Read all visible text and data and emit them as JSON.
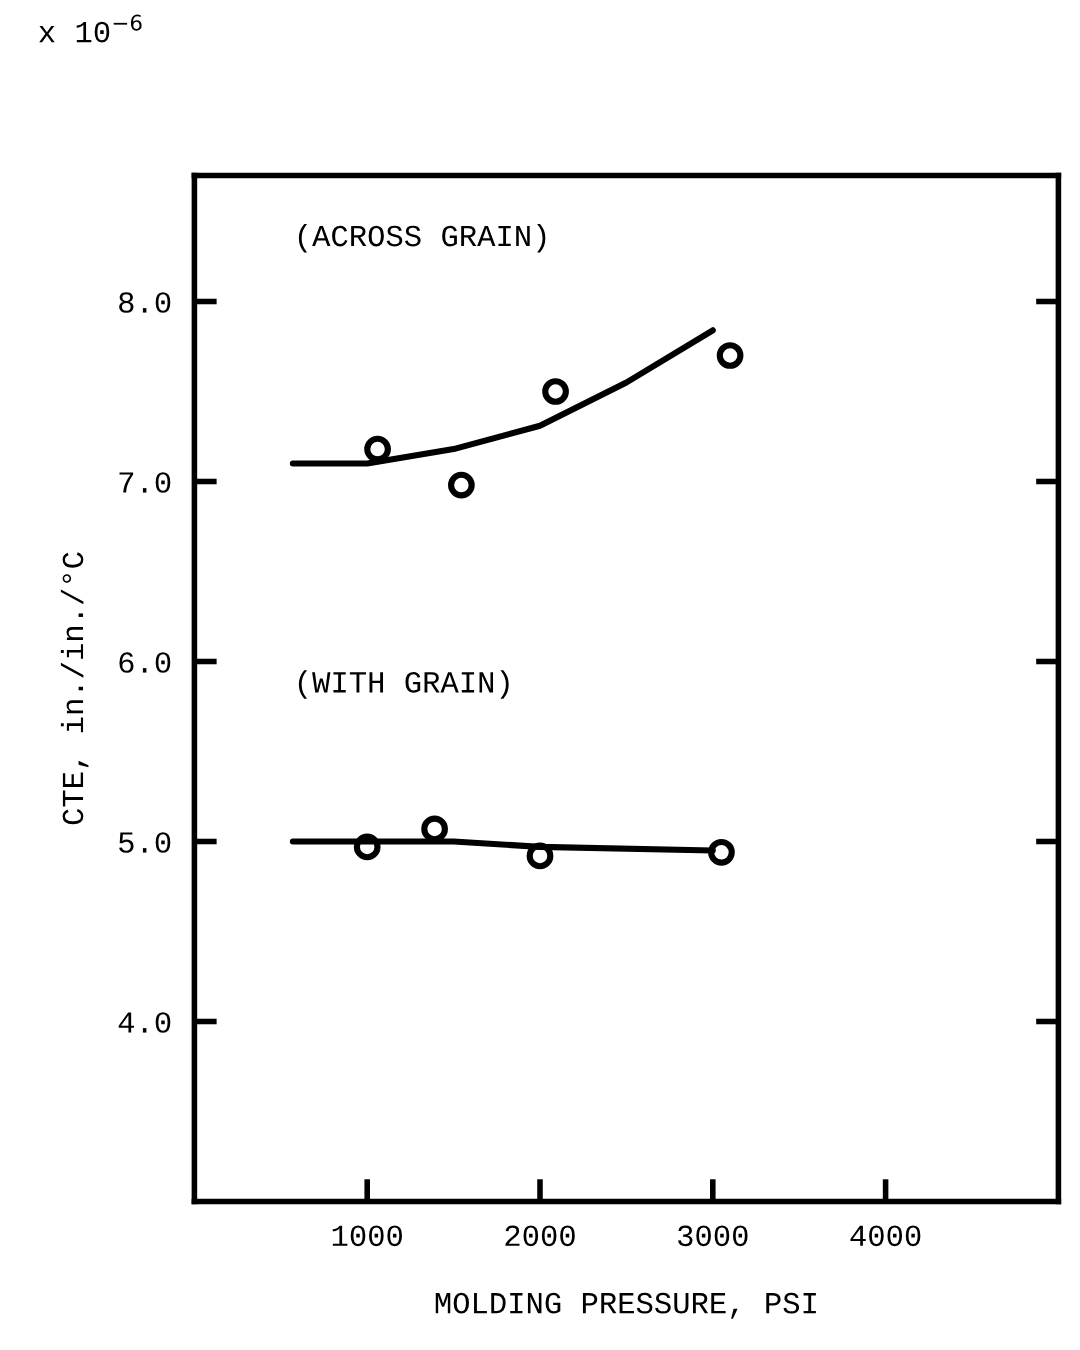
{
  "chart_data": {
    "type": "scatter",
    "xlabel": "MOLDING PRESSURE, PSI",
    "ylabel": "CTE, in./in./°C",
    "xlim": [
      0,
      5000
    ],
    "ylim": [
      3.0,
      8.7
    ],
    "xticks": [
      1000,
      2000,
      3000,
      4000
    ],
    "yticks": [
      {
        "value": 8.0,
        "label": "8.0"
      },
      {
        "value": 7.0,
        "label": "7.0"
      },
      {
        "value": 6.0,
        "label": "6.0"
      },
      {
        "value": 5.0,
        "label": "5.0"
      },
      {
        "value": 4.0,
        "label": "4.0"
      }
    ],
    "grid": false,
    "series": [
      {
        "color": "#000000",
        "marker": "circle",
        "x": [
          1060,
          1545,
          2090,
          3100
        ],
        "values": [
          7.18,
          6.98,
          7.5,
          7.7
        ]
      },
      {
        "color": "#000000",
        "marker": "circle",
        "x": [
          1000,
          1390,
          2000,
          3050
        ],
        "values": [
          4.97,
          5.07,
          4.92,
          4.94
        ]
      },
      {
        "type": "line",
        "color": "#000000",
        "line_style": "solid",
        "x": [
          570,
          1000,
          1500,
          2000,
          2500,
          3000
        ],
        "values": [
          7.1,
          7.1,
          7.18,
          7.31,
          7.55,
          7.84
        ]
      },
      {
        "type": "line",
        "color": "#000000",
        "line_style": "solid",
        "x": [
          570,
          1500,
          2000,
          3000
        ],
        "values": [
          5.0,
          5.0,
          4.97,
          4.95
        ]
      }
    ],
    "annotations": [
      "(ACROSS GRAIN)",
      "(WITH GRAIN)",
      "x 10$^{−6}$"
    ]
  }
}
